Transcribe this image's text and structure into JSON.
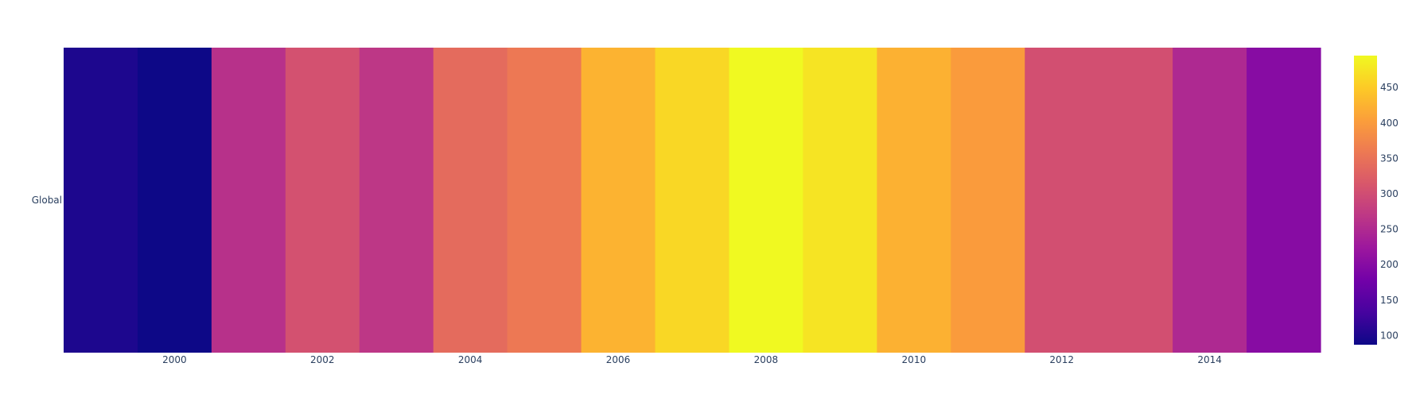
{
  "chart_data": {
    "type": "heatmap",
    "title": "",
    "xlabel": "",
    "ylabel": "",
    "x": [
      1999,
      2000,
      2001,
      2002,
      2003,
      2004,
      2005,
      2006,
      2007,
      2008,
      2009,
      2010,
      2011,
      2012,
      2013,
      2014,
      2015
    ],
    "y": [
      "Global"
    ],
    "z": [
      [
        100,
        87,
        260,
        305,
        268,
        340,
        358,
        425,
        462,
        495,
        475,
        423,
        400,
        303,
        303,
        248,
        200
      ]
    ],
    "x_tick_labels": [
      "2000",
      "2002",
      "2004",
      "2006",
      "2008",
      "2010",
      "2012",
      "2014"
    ],
    "colorbar": {
      "range": [
        87,
        495
      ],
      "tick_labels": [
        "100",
        "150",
        "200",
        "250",
        "300",
        "350",
        "400",
        "450"
      ],
      "colorscale": "plasma"
    }
  },
  "colors": {
    "colorscale_stops": [
      "#0d0887",
      "#46039f",
      "#7201a8",
      "#9c179e",
      "#bd3786",
      "#d8576b",
      "#ed7953",
      "#fb9f3a",
      "#fdca26",
      "#f0f921"
    ],
    "tick_text": "#2a3f5f",
    "background": "#ffffff"
  }
}
